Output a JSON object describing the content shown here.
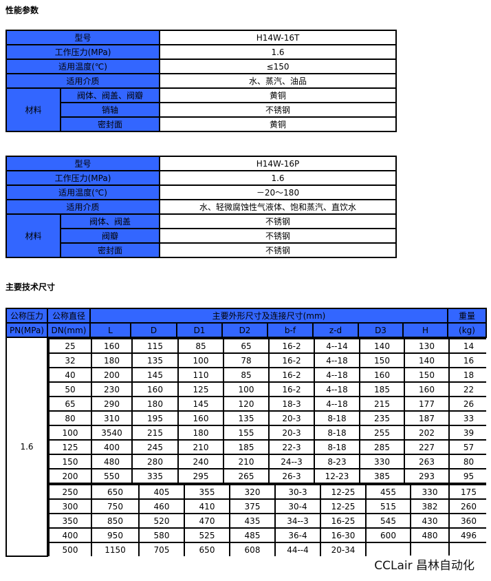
{
  "sections": {
    "performance": "性能参数",
    "dimensions": "主要技术尺寸"
  },
  "spec1": {
    "model_label": "型号",
    "model": "H14W-16T",
    "pressure_label": "工作压力(MPa)",
    "pressure": "1.6",
    "temp_label": "适用温度(℃)",
    "temp": "≤150",
    "medium_label": "适用介质",
    "medium": "水、蒸汽、油品",
    "material_label": "材料",
    "materials": [
      {
        "part": "阀体、阀盖、阀瓣",
        "value": "黄铜"
      },
      {
        "part": "销轴",
        "value": "不锈钢"
      },
      {
        "part": "密封面",
        "value": "黄铜"
      }
    ]
  },
  "spec2": {
    "model_label": "型号",
    "model": "H14W-16P",
    "pressure_label": "工作压力(MPa)",
    "pressure": "1.6",
    "temp_label": "适用温度(℃)",
    "temp": "－20～180",
    "medium_label": "适用介质",
    "medium": "水、轻微腐蚀性气液体、饱和蒸汽、直饮水",
    "material_label": "材料",
    "materials": [
      {
        "part": "阀体、阀盖",
        "value": "不锈钢"
      },
      {
        "part": "阀瓣",
        "value": "不锈钢"
      },
      {
        "part": "密封面",
        "value": "不锈钢"
      }
    ]
  },
  "dims": {
    "pn_label": "公称压力",
    "pn_unit": "PN(MPa)",
    "dn_label": "公称直径",
    "dn_unit": "DN(mm)",
    "group_label": "主要外形尺寸及连接尺寸(mm)",
    "weight_label": "重量",
    "weight_unit": "(kg)",
    "columns": [
      "L",
      "D",
      "D1",
      "D2",
      "b-f",
      "z-d",
      "D3",
      "H"
    ],
    "pn": "1.6",
    "rows_a": [
      [
        "25",
        "160",
        "115",
        "85",
        "65",
        "16-2",
        "4--14",
        "140",
        "130",
        "14"
      ],
      [
        "32",
        "180",
        "135",
        "100",
        "78",
        "16-2",
        "4--18",
        "150",
        "140",
        "16"
      ],
      [
        "40",
        "200",
        "145",
        "110",
        "85",
        "16-2",
        "4--18",
        "160",
        "150",
        "18"
      ],
      [
        "50",
        "230",
        "160",
        "125",
        "100",
        "16-2",
        "4--18",
        "185",
        "160",
        "22"
      ],
      [
        "65",
        "290",
        "180",
        "145",
        "120",
        "18-3",
        "4--18",
        "215",
        "177",
        "26"
      ],
      [
        "80",
        "310",
        "195",
        "160",
        "135",
        "20-3",
        "8-18",
        "235",
        "187",
        "33"
      ],
      [
        "100",
        "3540",
        "215",
        "180",
        "155",
        "20-3",
        "8-18",
        "255",
        "202",
        "39"
      ],
      [
        "125",
        "400",
        "245",
        "210",
        "185",
        "22-3",
        "8-18",
        "285",
        "227",
        "57"
      ],
      [
        "150",
        "480",
        "280",
        "240",
        "210",
        "24--3",
        "8-23",
        "330",
        "263",
        "80"
      ],
      [
        "200",
        "550",
        "335",
        "295",
        "265",
        "26-3",
        "12-23",
        "385",
        "293",
        "95"
      ]
    ],
    "rows_b": [
      [
        "250",
        "650",
        "405",
        "355",
        "320",
        "30-3",
        "12-25",
        "455",
        "330",
        "175"
      ],
      [
        "300",
        "750",
        "460",
        "410",
        "375",
        "30-4",
        "12-25",
        "515",
        "382",
        "260"
      ],
      [
        "350",
        "850",
        "520",
        "470",
        "435",
        "34--3",
        "16-25",
        "545",
        "430",
        "360"
      ],
      [
        "400",
        "950",
        "580",
        "525",
        "485",
        "36-4",
        "16-30",
        "600",
        "480",
        "496"
      ],
      [
        "500",
        "1150",
        "705",
        "650",
        "608",
        "44--4",
        "20-34",
        "",
        "",
        ""
      ]
    ]
  },
  "watermark": "CCLair 昌林自动化",
  "colors": {
    "header_blue": "#3366ff"
  }
}
